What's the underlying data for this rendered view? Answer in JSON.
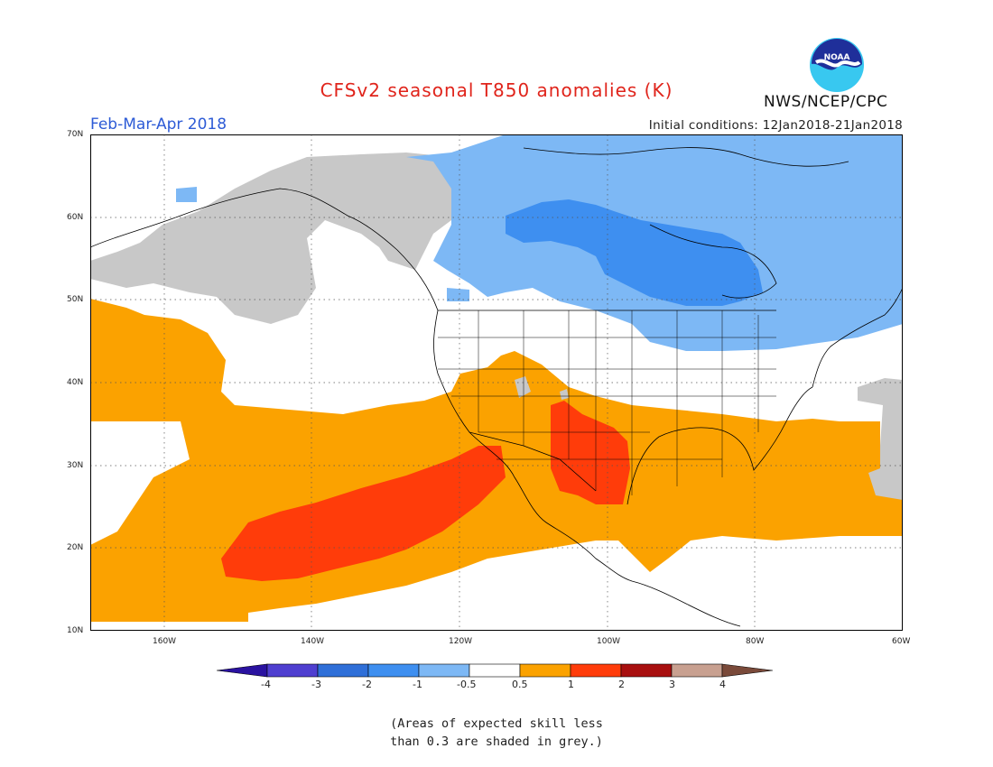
{
  "title": "CFSv2 seasonal T850 anomalies (K)",
  "organization": "NWS/NCEP/CPC",
  "logo_text": "NOAA",
  "period": "Feb-Mar-Apr 2018",
  "initial_conditions": "Initial conditions: 12Jan2018-21Jan2018",
  "lat_labels": [
    "70N",
    "60N",
    "50N",
    "40N",
    "30N",
    "20N",
    "10N"
  ],
  "lon_labels": [
    "160W",
    "140W",
    "120W",
    "100W",
    "80W",
    "60W"
  ],
  "colorbar": {
    "labels": [
      "-4",
      "-3",
      "-2",
      "-1",
      "-0.5",
      "0.5",
      "1",
      "2",
      "3",
      "4"
    ],
    "colors": [
      "#2a12a0",
      "#4f3fd0",
      "#2f6fd8",
      "#3e8ff0",
      "#7db8f5",
      "#ffffff",
      "#fba200",
      "#ff3c0a",
      "#a80f0f",
      "#c8a090",
      "#7a4a3a"
    ]
  },
  "note": [
    "(Areas of expected skill less",
    "than 0.3 are shaded in grey.)"
  ],
  "colors": {
    "warm1": "#fba200",
    "warm2": "#ff3c0a",
    "cool1": "#7db8f5",
    "cool2": "#3e8ff0",
    "grey": "#c8c8c8",
    "title": "#e0241b",
    "period": "#2d5bd6"
  }
}
